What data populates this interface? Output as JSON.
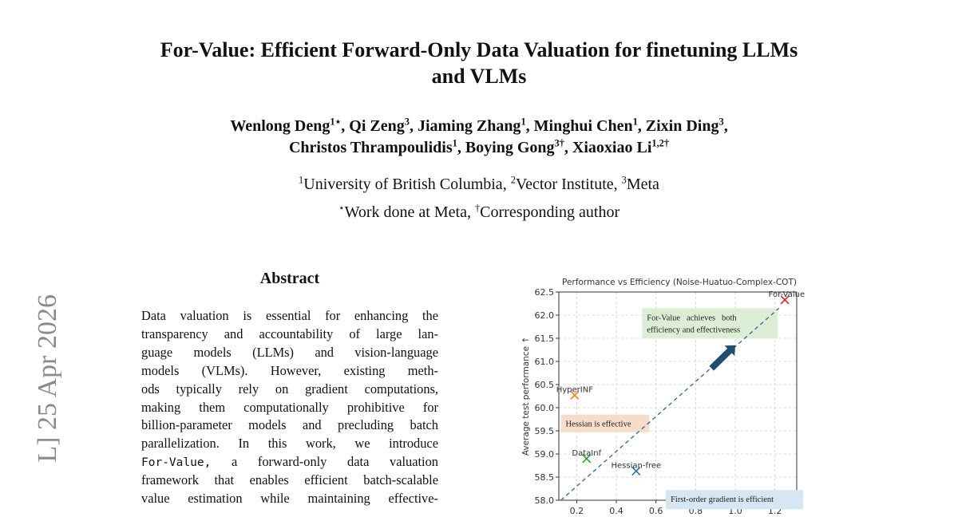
{
  "arxiv_stamp": "L]  25 Apr 2026",
  "title": {
    "line1": "For-Value: Efficient Forward-Only Data Valuation for finetuning LLMs",
    "line2": "and VLMs"
  },
  "authors": [
    {
      "name": "Wenlong Deng",
      "sup": "1⋆"
    },
    {
      "name": "Qi Zeng",
      "sup": "3"
    },
    {
      "name": "Jiaming Zhang",
      "sup": "1"
    },
    {
      "name": "Minghui Chen",
      "sup": "1"
    },
    {
      "name": "Zixin Ding",
      "sup": "3"
    },
    {
      "name": "Christos Thrampoulidis",
      "sup": "1"
    },
    {
      "name": "Boying Gong",
      "sup": "3†"
    },
    {
      "name": "Xiaoxiao Li",
      "sup": "1,2†"
    }
  ],
  "affiliations": [
    {
      "sup": "1",
      "name": "University of British Columbia"
    },
    {
      "sup": "2",
      "name": "Vector Institute"
    },
    {
      "sup": "3",
      "name": "Meta"
    }
  ],
  "notes": [
    {
      "sup": "⋆",
      "text": "Work done at Meta"
    },
    {
      "sup": "†",
      "text": "Corresponding author"
    }
  ],
  "abstract": {
    "heading": "Abstract",
    "lines": [
      "Data valuation is essential for enhancing the",
      "transparency and accountability of large lan-",
      "guage models (LLMs) and vision-language",
      "models (VLMs).  However, existing meth-",
      "ods typically rely on gradient computations,",
      "making them computationally prohibitive for",
      "billion-parameter models and precluding batch",
      "parallelization.  In this work, we introduce",
      "a forward-only data valuation",
      "framework that enables efficient batch-scalable",
      "value estimation while maintaining effective-"
    ],
    "method_name": "For-Value,"
  },
  "chart_data": {
    "type": "scatter",
    "title": "Performance vs Efficiency (Noise-Huatuo-Complex-COT)",
    "xlabel": "",
    "ylabel": "Average test performance ↑",
    "xlim": [
      0.11,
      1.31
    ],
    "ylim": [
      58.0,
      62.5
    ],
    "xticks": [
      "0.2",
      "0.4",
      "0.6",
      "0.8",
      "1.0",
      "1.2"
    ],
    "yticks": [
      "58.0",
      "58.5",
      "59.0",
      "59.5",
      "60.0",
      "60.5",
      "61.0",
      "61.5",
      "62.0",
      "62.5"
    ],
    "grid": true,
    "points": [
      {
        "label": "For-Value",
        "x": 1.25,
        "y": 62.33,
        "color": "#d62728"
      },
      {
        "label": "HyperINF",
        "x": 0.19,
        "y": 60.27,
        "color": "#ff7f0e"
      },
      {
        "label": "DataInf",
        "x": 0.25,
        "y": 58.9,
        "color": "#2ca02c"
      },
      {
        "label": "Hessian-free",
        "x": 0.5,
        "y": 58.63,
        "color": "#1f77b4"
      }
    ],
    "trend_line": {
      "from": [
        0.12,
        58.0
      ],
      "to": [
        1.22,
        62.15
      ],
      "color": "#3b6e99",
      "style": "dashed"
    },
    "arrow": {
      "from": [
        0.88,
        60.85
      ],
      "to": [
        1.0,
        61.35
      ],
      "color": "#1f4e6e"
    },
    "annotations": [
      {
        "text_lines": [
          "For-Value   achieves   both",
          "efficiency and effectiveness"
        ],
        "x": 0.53,
        "y": 62.15,
        "bg": "#dcefd6"
      },
      {
        "text_lines": [
          "Hessian is effective"
        ],
        "x": 0.12,
        "y": 59.85,
        "bg": "#f5dccb"
      },
      {
        "text_lines": [
          "First-order gradient is efficient"
        ],
        "x": 0.65,
        "y": 58.22,
        "bg": "#d6e6f2"
      }
    ]
  }
}
